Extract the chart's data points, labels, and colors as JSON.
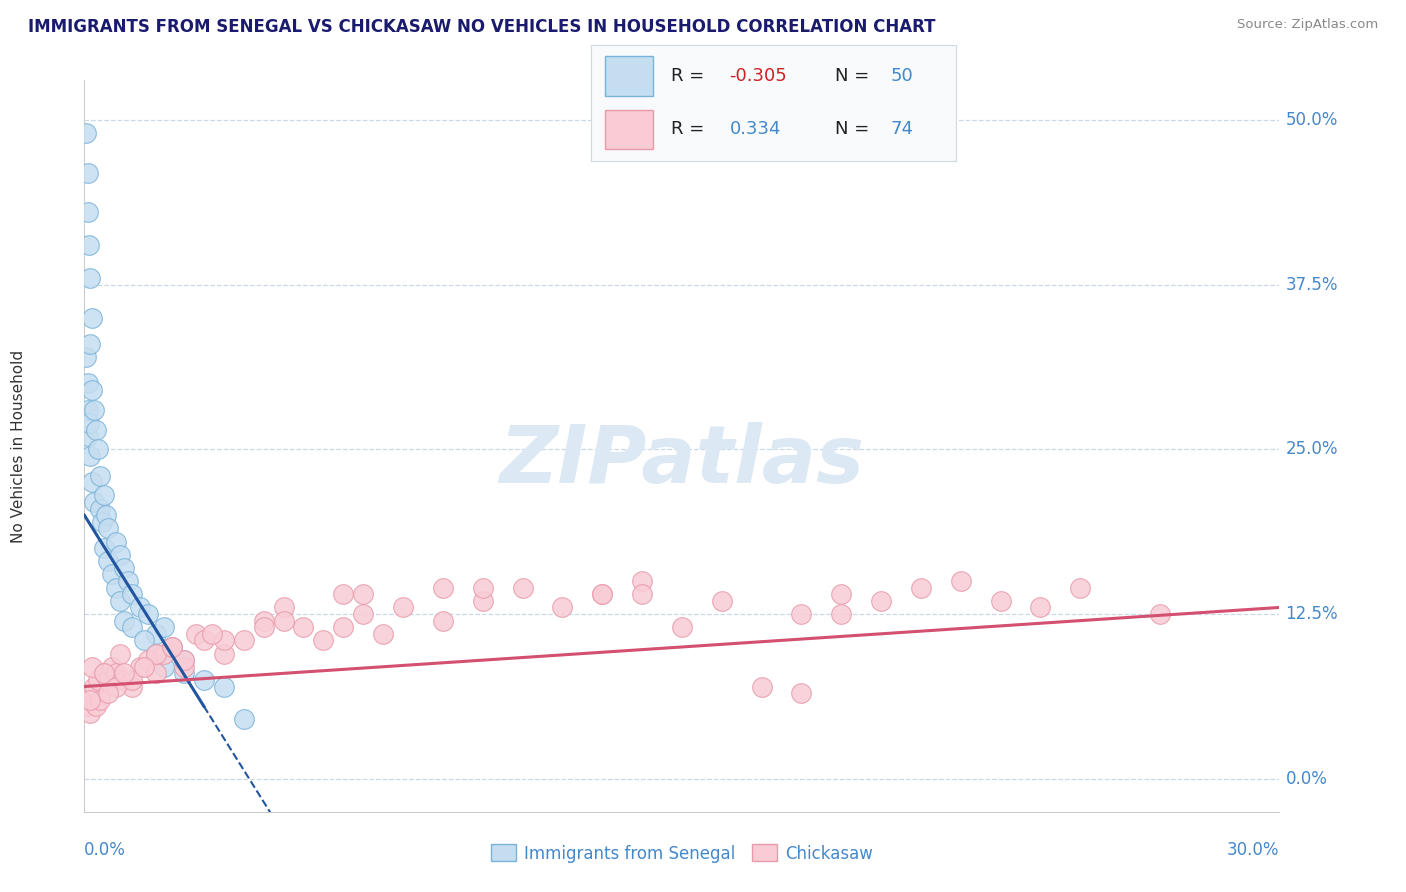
{
  "title": "IMMIGRANTS FROM SENEGAL VS CHICKASAW NO VEHICLES IN HOUSEHOLD CORRELATION CHART",
  "source": "Source: ZipAtlas.com",
  "ylabel": "No Vehicles in Household",
  "ytick_values": [
    0.0,
    12.5,
    25.0,
    37.5,
    50.0
  ],
  "xmin": 0.0,
  "xmax": 30.0,
  "ymin": -2.5,
  "ymax": 53.0,
  "blue_color": "#7ab3d9",
  "blue_fill": "#c5ddf0",
  "pink_color": "#e89aaa",
  "pink_fill": "#f9ccd5",
  "blue_line_color": "#2255a0",
  "pink_line_color": "#d45070",
  "title_color": "#1a1a6e",
  "axis_label_color": "#4488cc",
  "watermark_color": "#dde8f5",
  "legend_label1": "Immigrants from Senegal",
  "legend_label2": "Chickasaw",
  "blue_R": -0.305,
  "blue_N": 50,
  "pink_R": 0.334,
  "pink_N": 74,
  "blue_scatter_x": [
    0.05,
    0.08,
    0.1,
    0.12,
    0.15,
    0.05,
    0.08,
    0.1,
    0.15,
    0.18,
    0.1,
    0.12,
    0.15,
    0.2,
    0.25,
    0.2,
    0.25,
    0.3,
    0.35,
    0.4,
    0.4,
    0.45,
    0.5,
    0.55,
    0.6,
    0.5,
    0.6,
    0.7,
    0.8,
    0.9,
    0.8,
    0.9,
    1.0,
    1.1,
    1.2,
    1.0,
    1.2,
    1.4,
    1.6,
    1.8,
    1.5,
    1.8,
    2.0,
    2.2,
    2.5,
    2.0,
    2.5,
    3.0,
    3.5,
    4.0
  ],
  "blue_scatter_y": [
    49.0,
    46.0,
    43.0,
    40.5,
    38.0,
    32.0,
    30.0,
    28.0,
    33.0,
    35.0,
    26.0,
    27.0,
    24.5,
    22.5,
    21.0,
    29.5,
    28.0,
    26.5,
    25.0,
    23.0,
    20.5,
    19.5,
    21.5,
    20.0,
    19.0,
    17.5,
    16.5,
    15.5,
    18.0,
    17.0,
    14.5,
    13.5,
    16.0,
    15.0,
    14.0,
    12.0,
    11.5,
    13.0,
    12.5,
    11.0,
    10.5,
    9.5,
    11.5,
    10.0,
    9.0,
    8.5,
    8.0,
    7.5,
    7.0,
    4.5
  ],
  "pink_scatter_x": [
    0.05,
    0.1,
    0.15,
    0.2,
    0.25,
    0.3,
    0.35,
    0.4,
    0.5,
    0.6,
    0.7,
    0.8,
    0.9,
    1.0,
    1.2,
    1.4,
    1.6,
    1.8,
    2.0,
    2.2,
    2.5,
    2.8,
    3.0,
    3.5,
    4.0,
    4.5,
    5.0,
    5.5,
    6.0,
    6.5,
    7.0,
    7.5,
    8.0,
    9.0,
    10.0,
    11.0,
    12.0,
    13.0,
    14.0,
    15.0,
    16.0,
    17.0,
    18.0,
    19.0,
    20.0,
    21.0,
    22.0,
    23.0,
    24.0,
    25.0,
    0.2,
    0.5,
    0.8,
    1.2,
    1.8,
    2.5,
    3.5,
    5.0,
    7.0,
    10.0,
    14.0,
    19.0,
    0.15,
    0.6,
    1.0,
    1.5,
    2.2,
    3.2,
    4.5,
    6.5,
    9.0,
    13.0,
    18.0,
    27.0
  ],
  "pink_scatter_y": [
    5.5,
    6.0,
    5.0,
    6.5,
    7.0,
    5.5,
    7.5,
    6.0,
    8.0,
    7.5,
    8.5,
    8.0,
    9.5,
    7.5,
    7.0,
    8.5,
    9.0,
    8.0,
    9.5,
    10.0,
    8.5,
    11.0,
    10.5,
    9.5,
    10.5,
    12.0,
    13.0,
    11.5,
    10.5,
    11.5,
    12.5,
    11.0,
    13.0,
    12.0,
    13.5,
    14.5,
    13.0,
    14.0,
    15.0,
    11.5,
    13.5,
    7.0,
    12.5,
    14.0,
    13.5,
    14.5,
    15.0,
    13.5,
    13.0,
    14.5,
    8.5,
    8.0,
    7.0,
    7.5,
    9.5,
    9.0,
    10.5,
    12.0,
    14.0,
    14.5,
    14.0,
    12.5,
    6.0,
    6.5,
    8.0,
    8.5,
    10.0,
    11.0,
    11.5,
    14.0,
    14.5,
    14.0,
    6.5,
    12.5
  ]
}
